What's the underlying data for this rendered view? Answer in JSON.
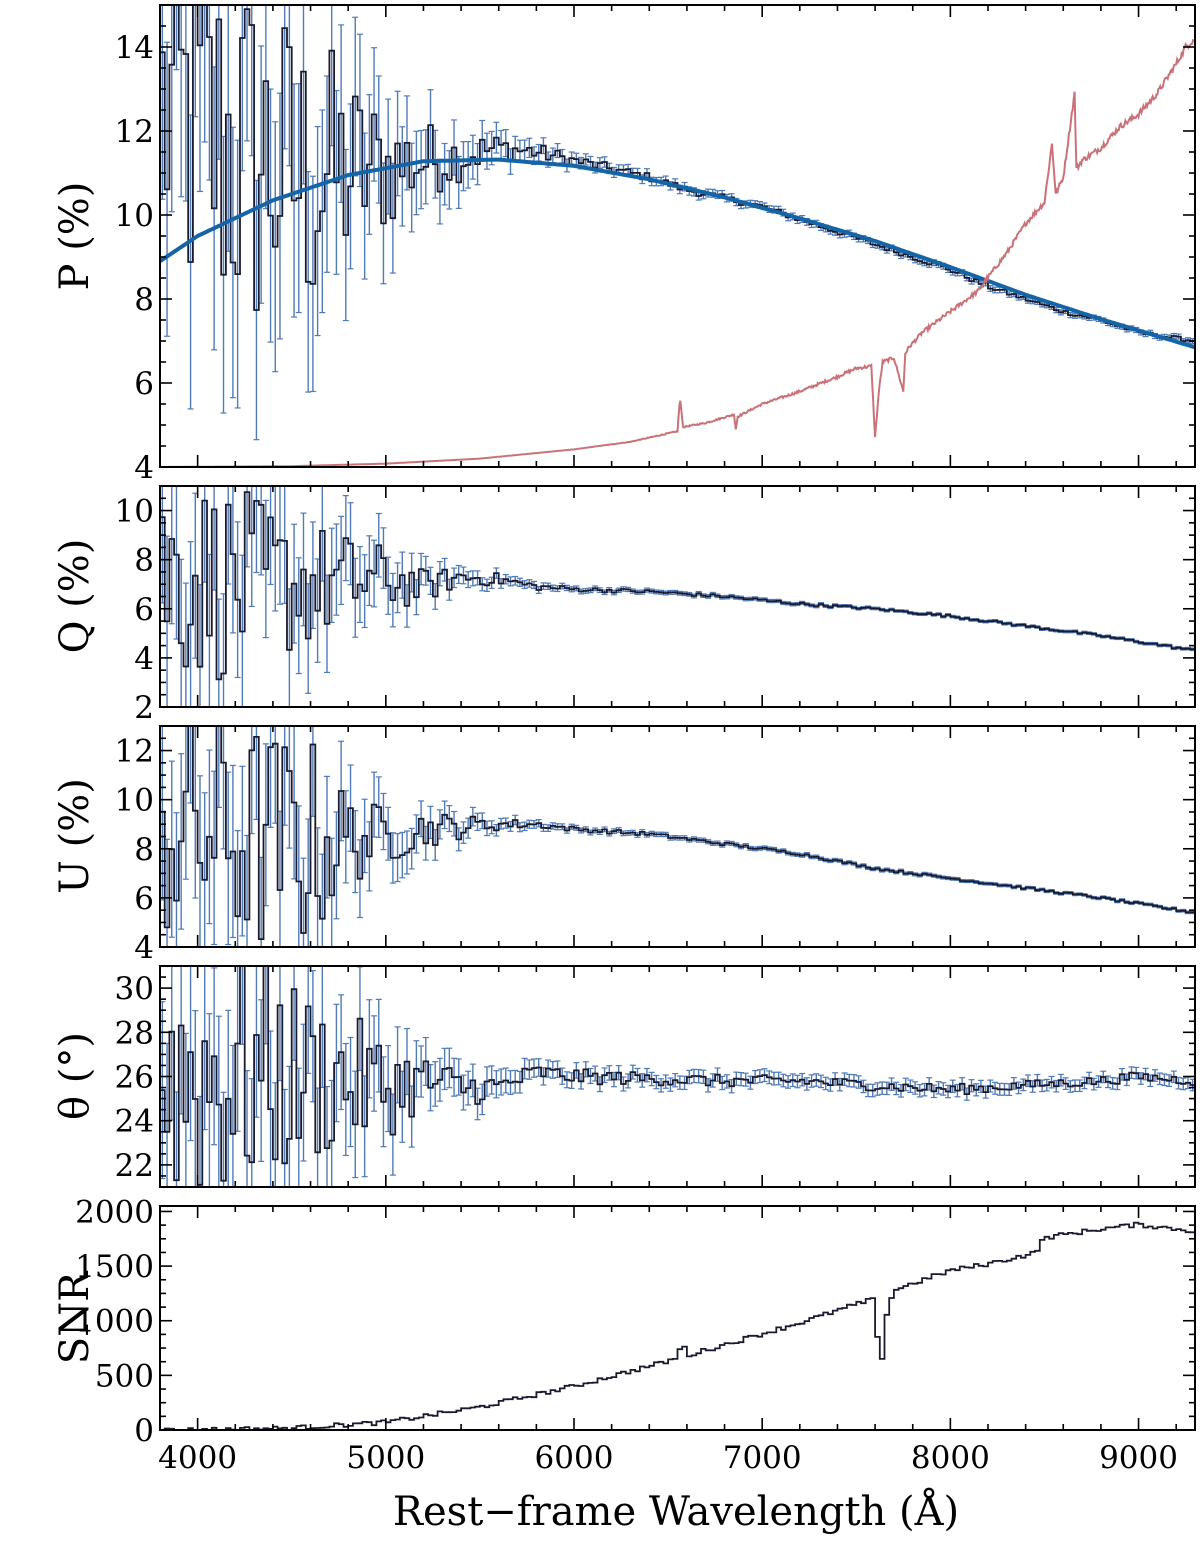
{
  "colors": {
    "data": "#1a1a2e",
    "error": "#4f7bb8",
    "fit": "#1465a8",
    "spectrum": "#c97378",
    "axes": "#000000"
  },
  "chart_data": [
    {
      "type": "line",
      "panel": "P",
      "ylabel": "P (%)",
      "ylim": [
        4,
        15
      ],
      "yticks": [
        "4",
        "6",
        "8",
        "10",
        "12",
        "14"
      ],
      "xlim": [
        3800,
        9300
      ],
      "series": [
        {
          "kind": "binned-data-with-errors",
          "bin_width": 25,
          "anchors_x": [
            3800,
            4000,
            4200,
            4400,
            4600,
            4800,
            5000,
            5200,
            5400,
            5600,
            5800,
            6000,
            6200,
            6400,
            6600,
            6800,
            7000,
            7200,
            7400,
            7600,
            7800,
            8000,
            8200,
            8400,
            8600,
            8800,
            9000,
            9300
          ],
          "anchors_y": [
            12.5,
            12.0,
            11.5,
            11.1,
            10.9,
            11.0,
            11.1,
            11.3,
            11.4,
            11.6,
            11.5,
            11.3,
            11.1,
            10.9,
            10.6,
            10.4,
            10.2,
            9.9,
            9.6,
            9.3,
            9.0,
            8.7,
            8.3,
            8.0,
            7.7,
            7.5,
            7.2,
            7.0
          ],
          "scatter_amplitude": [
            4.5,
            5.0,
            5.0,
            4.2,
            3.8,
            2.6,
            1.6,
            1.0,
            0.6,
            0.35,
            0.22,
            0.15,
            0.12,
            0.1,
            0.09,
            0.08,
            0.07,
            0.07,
            0.06,
            0.06,
            0.06,
            0.06,
            0.06,
            0.05,
            0.05,
            0.05,
            0.05,
            0.05
          ],
          "error_size": [
            3.5,
            3.5,
            3.2,
            3.0,
            2.6,
            2.0,
            1.4,
            0.9,
            0.6,
            0.35,
            0.2,
            0.14,
            0.12,
            0.1,
            0.1,
            0.09,
            0.08,
            0.08,
            0.08,
            0.07,
            0.07,
            0.07,
            0.07,
            0.06,
            0.06,
            0.06,
            0.06,
            0.06
          ]
        },
        {
          "kind": "fit",
          "anchors_x": [
            3800,
            4000,
            4400,
            4800,
            5200,
            5600,
            6000,
            6400,
            6800,
            7200,
            7600,
            8000,
            8400,
            8800,
            9300
          ],
          "anchors_y": [
            8.9,
            9.5,
            10.35,
            10.95,
            11.28,
            11.32,
            11.17,
            10.85,
            10.42,
            9.92,
            9.38,
            8.76,
            8.1,
            7.52,
            6.85
          ]
        },
        {
          "kind": "spectrum",
          "anchors_x": [
            3800,
            4500,
            5000,
            5500,
            6000,
            6300,
            6550,
            6563,
            6580,
            6700,
            6850,
            6860,
            6870,
            7000,
            7200,
            7400,
            7500,
            7580,
            7600,
            7620,
            7640,
            7700,
            7750,
            7760,
            7780,
            7850,
            8000,
            8150,
            8180,
            8300,
            8400,
            8500,
            8540,
            8560,
            8600,
            8660,
            8670,
            8700,
            8800,
            8900,
            9000,
            9100,
            9200,
            9250,
            9300
          ],
          "anchors_y": [
            4.0,
            4.02,
            4.08,
            4.2,
            4.42,
            4.6,
            4.85,
            5.65,
            4.95,
            5.05,
            5.25,
            4.9,
            5.2,
            5.5,
            5.8,
            6.15,
            6.35,
            6.4,
            4.7,
            5.8,
            6.5,
            6.6,
            5.8,
            6.7,
            6.85,
            7.2,
            7.7,
            8.2,
            8.4,
            9.1,
            9.8,
            10.3,
            11.7,
            10.5,
            10.9,
            12.9,
            11.1,
            11.3,
            11.6,
            12.1,
            12.4,
            12.9,
            13.6,
            14.0,
            14.2
          ]
        }
      ]
    },
    {
      "type": "line",
      "panel": "Q",
      "ylabel": "Q (%)",
      "ylim": [
        2,
        11
      ],
      "yticks": [
        "2",
        "4",
        "6",
        "8",
        "10"
      ],
      "xlim": [
        3800,
        9300
      ],
      "series": [
        {
          "kind": "binned-data-with-errors",
          "bin_width": 25,
          "anchors_x": [
            3800,
            4200,
            4600,
            5000,
            5200,
            5400,
            5600,
            5800,
            6000,
            6400,
            6800,
            7200,
            7600,
            8000,
            8400,
            8800,
            9300
          ],
          "anchors_y": [
            7.5,
            7.0,
            7.0,
            7.2,
            6.9,
            7.3,
            7.2,
            6.9,
            6.8,
            6.7,
            6.5,
            6.2,
            6.0,
            5.7,
            5.3,
            4.9,
            4.3
          ],
          "scatter_amplitude": [
            4.5,
            4.0,
            2.6,
            1.4,
            0.7,
            0.4,
            0.25,
            0.15,
            0.1,
            0.08,
            0.07,
            0.06,
            0.05,
            0.05,
            0.05,
            0.05,
            0.05
          ],
          "error_size": [
            3.5,
            3.2,
            2.2,
            1.2,
            0.6,
            0.35,
            0.2,
            0.14,
            0.1,
            0.08,
            0.07,
            0.06,
            0.05,
            0.05,
            0.05,
            0.05,
            0.05
          ]
        }
      ]
    },
    {
      "type": "line",
      "panel": "U",
      "ylabel": "U (%)",
      "ylim": [
        4,
        13
      ],
      "yticks": [
        "4",
        "6",
        "8",
        "10",
        "12"
      ],
      "xlim": [
        3800,
        9300
      ],
      "series": [
        {
          "kind": "binned-data-with-errors",
          "bin_width": 25,
          "anchors_x": [
            3800,
            4200,
            4600,
            4800,
            5000,
            5200,
            5400,
            5600,
            5800,
            6000,
            6400,
            6800,
            7200,
            7600,
            8000,
            8400,
            8800,
            9300
          ],
          "anchors_y": [
            9.0,
            8.5,
            8.2,
            8.4,
            8.5,
            8.8,
            8.9,
            9.0,
            9.0,
            8.8,
            8.6,
            8.2,
            7.8,
            7.2,
            6.8,
            6.4,
            6.0,
            5.4
          ],
          "scatter_amplitude": [
            5.0,
            5.0,
            4.5,
            2.0,
            1.2,
            0.8,
            0.5,
            0.25,
            0.15,
            0.1,
            0.08,
            0.07,
            0.06,
            0.05,
            0.05,
            0.05,
            0.05,
            0.05
          ],
          "error_size": [
            3.6,
            3.5,
            3.0,
            1.8,
            1.1,
            0.7,
            0.45,
            0.22,
            0.15,
            0.1,
            0.09,
            0.08,
            0.07,
            0.06,
            0.06,
            0.05,
            0.05,
            0.05
          ]
        }
      ]
    },
    {
      "type": "line",
      "panel": "theta",
      "ylabel": "θ (°)",
      "ylim": [
        21,
        31
      ],
      "yticks": [
        "22",
        "24",
        "26",
        "28",
        "30"
      ],
      "xlim": [
        3800,
        9300
      ],
      "series": [
        {
          "kind": "binned-data-with-errors",
          "bin_width": 25,
          "anchors_x": [
            3800,
            4200,
            4600,
            5000,
            5200,
            5400,
            5600,
            5800,
            6000,
            6400,
            6800,
            7200,
            7600,
            8000,
            8400,
            8800,
            9000,
            9300
          ],
          "anchors_y": [
            26.0,
            26.0,
            26.0,
            25.5,
            25.8,
            25.5,
            25.5,
            26.2,
            26.0,
            25.9,
            25.8,
            25.8,
            25.6,
            25.4,
            25.6,
            25.8,
            26.0,
            25.8
          ],
          "scatter_amplitude": [
            6.0,
            6.0,
            4.0,
            2.4,
            1.3,
            0.9,
            0.6,
            0.4,
            0.35,
            0.3,
            0.28,
            0.25,
            0.25,
            0.25,
            0.22,
            0.22,
            0.22,
            0.22
          ],
          "error_size": [
            4.0,
            4.0,
            3.0,
            2.0,
            1.1,
            0.8,
            0.6,
            0.4,
            0.35,
            0.3,
            0.3,
            0.28,
            0.28,
            0.28,
            0.26,
            0.26,
            0.26,
            0.26
          ]
        }
      ]
    },
    {
      "type": "line",
      "panel": "SNR",
      "ylabel": "SNR",
      "ylim": [
        0,
        2050
      ],
      "yticks": [
        "0",
        "500",
        "1000",
        "1500",
        "2000"
      ],
      "xlim": [
        3800,
        9300
      ],
      "xticks": [
        "4000",
        "5000",
        "6000",
        "7000",
        "8000",
        "9000"
      ],
      "xlabel": "Rest−frame Wavelength (Å)",
      "series": [
        {
          "kind": "binned-data",
          "bin_width": 25,
          "anchors_x": [
            3800,
            4000,
            4500,
            5000,
            5500,
            6000,
            6500,
            6550,
            6575,
            6600,
            6900,
            7200,
            7500,
            7600,
            7610,
            7640,
            7660,
            7700,
            8000,
            8200,
            8450,
            8500,
            8800,
            9000,
            9300
          ],
          "anchors_y": [
            0,
            2,
            18,
            70,
            210,
            400,
            630,
            660,
            820,
            680,
            830,
            980,
            1150,
            1200,
            850,
            650,
            1050,
            1280,
            1460,
            1520,
            1620,
            1760,
            1840,
            1880,
            1820
          ],
          "scatter_amplitude": 20
        }
      ]
    }
  ]
}
